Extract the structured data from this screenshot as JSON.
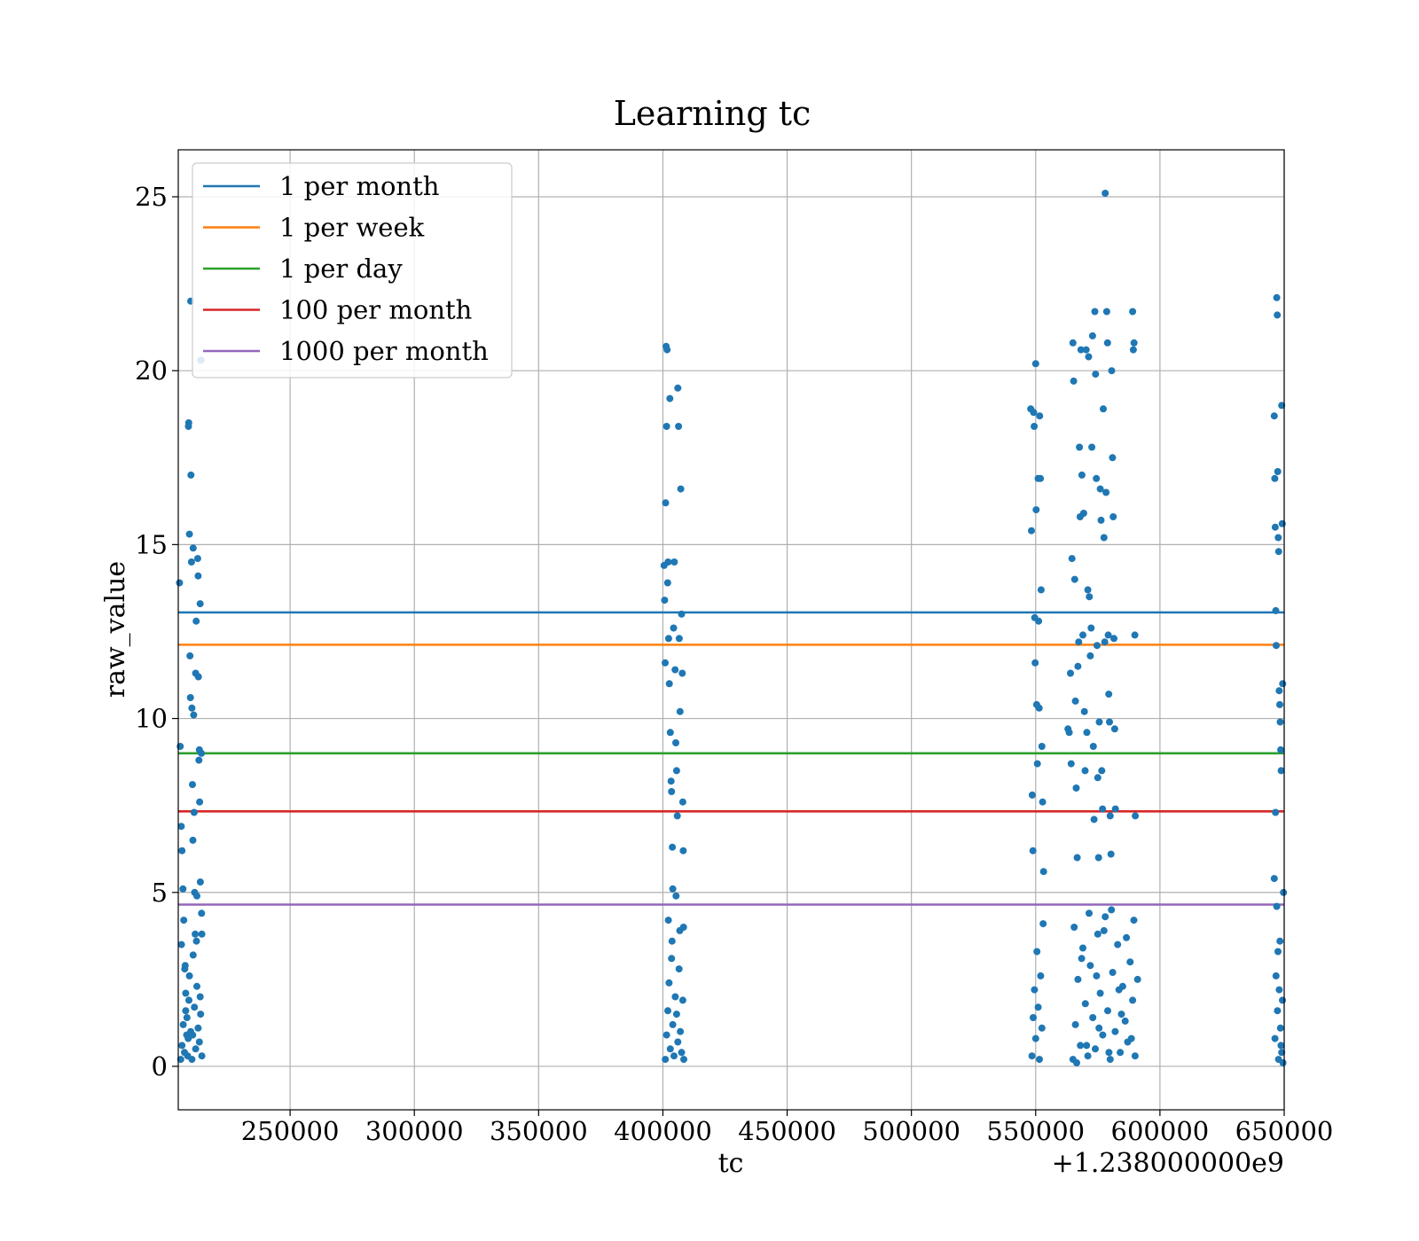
{
  "chart_data": {
    "type": "scatter",
    "title": "Learning tc",
    "xlabel": "tc",
    "ylabel": "raw_value",
    "x_offset_label": "+1.238000000e9",
    "xlim": [
      205000,
      650000
    ],
    "ylim": [
      -1.25,
      26.35
    ],
    "xticks": [
      250000,
      300000,
      350000,
      400000,
      450000,
      500000,
      550000,
      600000,
      650000
    ],
    "xtick_labels": [
      "250000",
      "300000",
      "350000",
      "400000",
      "450000",
      "500000",
      "550000",
      "600000",
      "650000"
    ],
    "yticks": [
      0,
      5,
      10,
      15,
      20,
      25
    ],
    "ytick_labels": [
      "0",
      "5",
      "10",
      "15",
      "20",
      "25"
    ],
    "grid": true,
    "legend_position": "upper left",
    "scatter_color": "#1f77b4",
    "hlines": [
      {
        "name": "1 per month",
        "y": 13.05,
        "color": "#1f77b4"
      },
      {
        "name": "1 per week",
        "y": 12.12,
        "color": "#ff7f0e"
      },
      {
        "name": "1 per day",
        "y": 9.0,
        "color": "#2ca02c"
      },
      {
        "name": "100 per month",
        "y": 7.33,
        "color": "#d62728"
      },
      {
        "name": "1000 per month",
        "y": 4.65,
        "color": "#9467bd"
      }
    ],
    "series": [
      {
        "points": [
          [
            205500,
            13.9
          ],
          [
            205800,
            9.2
          ],
          [
            206200,
            6.9
          ],
          [
            206500,
            6.2
          ],
          [
            206900,
            5.1
          ],
          [
            207200,
            4.2
          ],
          [
            207600,
            2.8
          ],
          [
            208000,
            1.6
          ],
          [
            208400,
            0.9
          ],
          [
            208800,
            0.3
          ],
          [
            209100,
            18.4
          ],
          [
            209200,
            18.5
          ],
          [
            209500,
            15.3
          ],
          [
            209700,
            11.8
          ],
          [
            209900,
            10.6
          ],
          [
            210000,
            22.0
          ],
          [
            210100,
            17.0
          ],
          [
            210300,
            14.5
          ],
          [
            210500,
            10.3
          ],
          [
            210700,
            8.1
          ],
          [
            210900,
            6.5
          ],
          [
            211000,
            14.9
          ],
          [
            211200,
            10.1
          ],
          [
            211400,
            7.3
          ],
          [
            211600,
            5.0
          ],
          [
            211800,
            3.8
          ],
          [
            212000,
            11.3
          ],
          [
            212200,
            12.8
          ],
          [
            212500,
            4.9
          ],
          [
            212800,
            14.6
          ],
          [
            213000,
            14.1
          ],
          [
            213100,
            11.2
          ],
          [
            213300,
            8.8
          ],
          [
            213500,
            9.1
          ],
          [
            213600,
            7.6
          ],
          [
            213800,
            13.3
          ],
          [
            213900,
            5.3
          ],
          [
            214000,
            20.3
          ],
          [
            214200,
            20.3
          ],
          [
            214300,
            9.0
          ],
          [
            214400,
            4.4
          ],
          [
            214500,
            3.8
          ],
          [
            206000,
            0.2
          ],
          [
            206500,
            0.6
          ],
          [
            207000,
            1.2
          ],
          [
            207500,
            0.4
          ],
          [
            208000,
            2.1
          ],
          [
            208500,
            1.4
          ],
          [
            209000,
            0.8
          ],
          [
            209500,
            2.6
          ],
          [
            210000,
            1.0
          ],
          [
            210500,
            0.2
          ],
          [
            211000,
            3.2
          ],
          [
            211500,
            1.7
          ],
          [
            212000,
            0.5
          ],
          [
            212500,
            2.3
          ],
          [
            213000,
            1.1
          ],
          [
            213500,
            0.7
          ],
          [
            214000,
            1.5
          ],
          [
            214500,
            0.3
          ],
          [
            206300,
            3.5
          ],
          [
            207800,
            2.9
          ],
          [
            209300,
            1.9
          ],
          [
            210800,
            0.9
          ],
          [
            212300,
            3.6
          ],
          [
            213800,
            2.0
          ],
          [
            400500,
            14.4
          ],
          [
            400700,
            13.4
          ],
          [
            400900,
            11.6
          ],
          [
            401100,
            16.2
          ],
          [
            401300,
            20.7
          ],
          [
            401500,
            18.4
          ],
          [
            401700,
            20.6
          ],
          [
            401900,
            13.9
          ],
          [
            402100,
            14.5
          ],
          [
            402300,
            12.3
          ],
          [
            402600,
            11.0
          ],
          [
            402800,
            19.2
          ],
          [
            403000,
            9.6
          ],
          [
            403300,
            8.2
          ],
          [
            403500,
            7.9
          ],
          [
            403800,
            6.3
          ],
          [
            404000,
            5.1
          ],
          [
            404300,
            12.6
          ],
          [
            404600,
            14.5
          ],
          [
            404900,
            11.4
          ],
          [
            405200,
            9.3
          ],
          [
            405500,
            8.5
          ],
          [
            405800,
            7.2
          ],
          [
            406000,
            19.5
          ],
          [
            406300,
            18.4
          ],
          [
            406600,
            12.3
          ],
          [
            406900,
            10.2
          ],
          [
            407200,
            16.6
          ],
          [
            407500,
            13.0
          ],
          [
            407800,
            11.3
          ],
          [
            408000,
            7.6
          ],
          [
            408200,
            6.2
          ],
          [
            401000,
            0.2
          ],
          [
            401500,
            0.9
          ],
          [
            402000,
            1.6
          ],
          [
            402500,
            2.4
          ],
          [
            403000,
            0.5
          ],
          [
            403500,
            3.1
          ],
          [
            404000,
            1.2
          ],
          [
            404500,
            0.3
          ],
          [
            405000,
            2.0
          ],
          [
            405500,
            1.5
          ],
          [
            406000,
            0.7
          ],
          [
            406500,
            2.8
          ],
          [
            407000,
            1.0
          ],
          [
            407500,
            0.4
          ],
          [
            408000,
            1.9
          ],
          [
            408400,
            0.2
          ],
          [
            402200,
            4.2
          ],
          [
            403700,
            3.6
          ],
          [
            405300,
            4.9
          ],
          [
            406800,
            3.9
          ],
          [
            408300,
            4.0
          ],
          [
            548000,
            18.9
          ],
          [
            548300,
            15.4
          ],
          [
            548600,
            7.8
          ],
          [
            548900,
            6.2
          ],
          [
            549200,
            18.8
          ],
          [
            549400,
            18.4
          ],
          [
            549600,
            12.9
          ],
          [
            549800,
            11.6
          ],
          [
            550000,
            20.2
          ],
          [
            550200,
            16.0
          ],
          [
            550400,
            10.4
          ],
          [
            550700,
            8.7
          ],
          [
            551000,
            16.9
          ],
          [
            551200,
            12.8
          ],
          [
            551400,
            10.3
          ],
          [
            551600,
            18.7
          ],
          [
            551900,
            16.9
          ],
          [
            552200,
            13.7
          ],
          [
            552500,
            9.2
          ],
          [
            552800,
            7.6
          ],
          [
            553200,
            5.6
          ],
          [
            563000,
            9.7
          ],
          [
            563500,
            9.6
          ],
          [
            564000,
            11.3
          ],
          [
            564300,
            8.7
          ],
          [
            564600,
            14.6
          ],
          [
            565000,
            20.8
          ],
          [
            565300,
            19.7
          ],
          [
            565700,
            14.0
          ],
          [
            566000,
            10.5
          ],
          [
            566300,
            8.0
          ],
          [
            566700,
            6.0
          ],
          [
            567000,
            11.5
          ],
          [
            567300,
            12.2
          ],
          [
            567600,
            17.8
          ],
          [
            567900,
            15.8
          ],
          [
            568200,
            20.6
          ],
          [
            568600,
            17.0
          ],
          [
            569000,
            12.4
          ],
          [
            569300,
            15.9
          ],
          [
            569600,
            10.2
          ],
          [
            569900,
            8.5
          ],
          [
            570300,
            20.6
          ],
          [
            570600,
            9.6
          ],
          [
            571000,
            13.7
          ],
          [
            571300,
            20.4
          ],
          [
            571600,
            13.5
          ],
          [
            572000,
            11.8
          ],
          [
            572300,
            12.6
          ],
          [
            572600,
            17.8
          ],
          [
            572900,
            21.0
          ],
          [
            573200,
            9.2
          ],
          [
            573500,
            7.1
          ],
          [
            573800,
            21.7
          ],
          [
            574100,
            19.9
          ],
          [
            574400,
            16.9
          ],
          [
            574700,
            12.1
          ],
          [
            575000,
            8.3
          ],
          [
            575300,
            6.0
          ],
          [
            575600,
            9.9
          ],
          [
            576000,
            16.6
          ],
          [
            576300,
            15.7
          ],
          [
            576600,
            8.5
          ],
          [
            576900,
            7.4
          ],
          [
            577200,
            18.9
          ],
          [
            577500,
            15.2
          ],
          [
            577800,
            12.2
          ],
          [
            578000,
            25.1
          ],
          [
            578300,
            16.5
          ],
          [
            578600,
            21.7
          ],
          [
            578900,
            20.8
          ],
          [
            579200,
            12.4
          ],
          [
            579400,
            10.7
          ],
          [
            579700,
            9.9
          ],
          [
            580000,
            7.2
          ],
          [
            580300,
            6.1
          ],
          [
            580600,
            20.0
          ],
          [
            580900,
            17.5
          ],
          [
            581200,
            15.8
          ],
          [
            581500,
            12.3
          ],
          [
            581800,
            9.7
          ],
          [
            582100,
            7.4
          ],
          [
            589000,
            21.7
          ],
          [
            589300,
            20.6
          ],
          [
            589600,
            20.8
          ],
          [
            589900,
            12.4
          ],
          [
            590100,
            7.2
          ],
          [
            548500,
            0.3
          ],
          [
            549000,
            1.4
          ],
          [
            549500,
            2.2
          ],
          [
            550000,
            0.8
          ],
          [
            550500,
            3.3
          ],
          [
            551000,
            1.7
          ],
          [
            551500,
            0.2
          ],
          [
            552000,
            2.6
          ],
          [
            552500,
            1.1
          ],
          [
            553000,
            4.1
          ],
          [
            565000,
            0.2
          ],
          [
            566000,
            1.2
          ],
          [
            567000,
            2.5
          ],
          [
            568000,
            0.6
          ],
          [
            569000,
            3.4
          ],
          [
            570000,
            1.8
          ],
          [
            571000,
            0.3
          ],
          [
            572000,
            2.9
          ],
          [
            573000,
            1.4
          ],
          [
            574000,
            0.5
          ],
          [
            575000,
            3.8
          ],
          [
            576000,
            2.1
          ],
          [
            577000,
            0.9
          ],
          [
            578000,
            4.3
          ],
          [
            579000,
            1.6
          ],
          [
            580000,
            0.2
          ],
          [
            581000,
            2.7
          ],
          [
            582000,
            1.0
          ],
          [
            583000,
            3.5
          ],
          [
            584000,
            0.4
          ],
          [
            585000,
            2.3
          ],
          [
            586000,
            1.3
          ],
          [
            587000,
            0.7
          ],
          [
            588000,
            3.0
          ],
          [
            589000,
            1.9
          ],
          [
            590000,
            0.3
          ],
          [
            591000,
            2.5
          ],
          [
            565500,
            4.0
          ],
          [
            568500,
            3.1
          ],
          [
            571500,
            4.4
          ],
          [
            574500,
            2.6
          ],
          [
            577500,
            3.9
          ],
          [
            580500,
            4.5
          ],
          [
            583500,
            2.2
          ],
          [
            586500,
            3.7
          ],
          [
            589500,
            4.2
          ],
          [
            566500,
            0.1
          ],
          [
            570500,
            0.6
          ],
          [
            575500,
            1.1
          ],
          [
            579500,
            0.4
          ],
          [
            584500,
            1.5
          ],
          [
            588500,
            0.8
          ],
          [
            646000,
            18.7
          ],
          [
            646200,
            16.9
          ],
          [
            646400,
            15.5
          ],
          [
            646600,
            13.1
          ],
          [
            646800,
            12.1
          ],
          [
            647000,
            22.1
          ],
          [
            647200,
            21.6
          ],
          [
            647400,
            17.1
          ],
          [
            647600,
            15.2
          ],
          [
            647800,
            14.8
          ],
          [
            648000,
            10.8
          ],
          [
            648200,
            10.4
          ],
          [
            648400,
            9.9
          ],
          [
            648600,
            9.1
          ],
          [
            648800,
            8.5
          ],
          [
            649000,
            19.0
          ],
          [
            649200,
            15.6
          ],
          [
            649400,
            11.0
          ],
          [
            646000,
            5.4
          ],
          [
            646500,
            7.3
          ],
          [
            647000,
            4.6
          ],
          [
            647500,
            3.3
          ],
          [
            648000,
            2.2
          ],
          [
            648500,
            1.1
          ],
          [
            649000,
            0.4
          ],
          [
            649500,
            0.1
          ],
          [
            646300,
            0.8
          ],
          [
            646700,
            2.6
          ],
          [
            647300,
            1.6
          ],
          [
            647700,
            0.2
          ],
          [
            648300,
            3.6
          ],
          [
            648700,
            0.6
          ],
          [
            649300,
            1.9
          ],
          [
            649700,
            5.0
          ]
        ]
      }
    ]
  }
}
